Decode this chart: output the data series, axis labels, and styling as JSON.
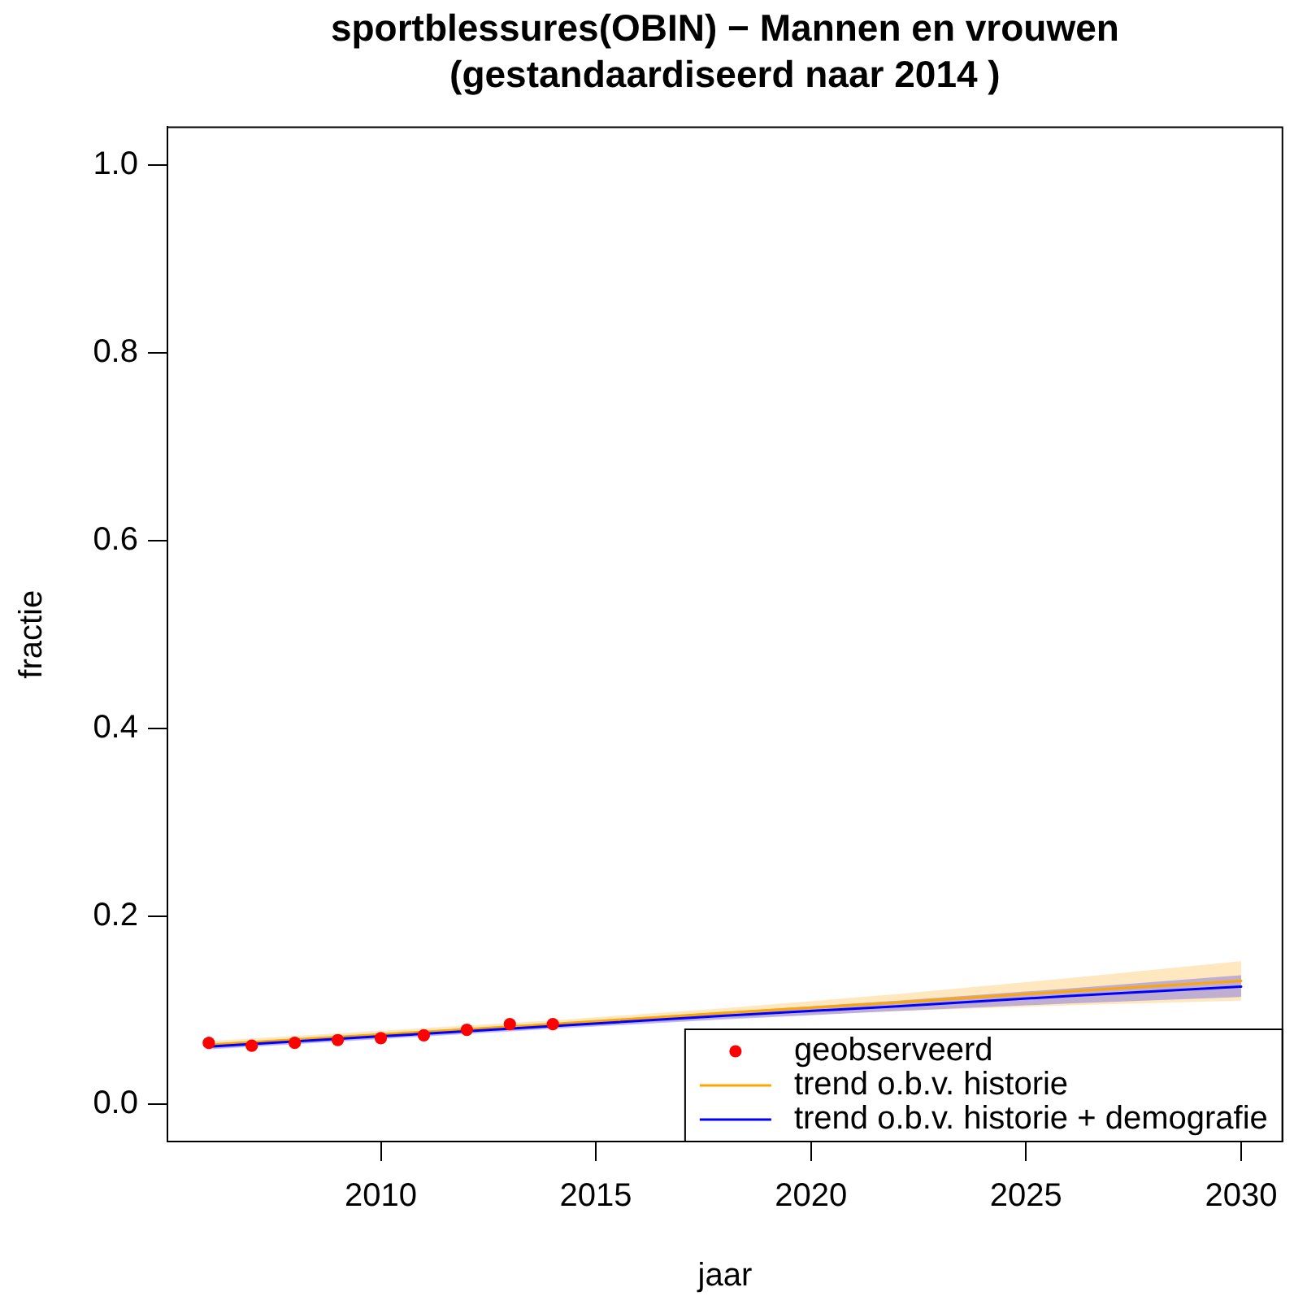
{
  "chart_data": {
    "type": "line",
    "title": "sportblessures(OBIN) − Mannen en vrouwen",
    "subtitle": "(gestandaardiseerd naar 2014 )",
    "xlabel": "jaar",
    "ylabel": "fractie",
    "series": [
      {
        "name": "geobserveerd",
        "type": "scatter",
        "marker": "circle",
        "color": "#ff0000",
        "x": [
          2006,
          2007,
          2008,
          2009,
          2010,
          2011,
          2012,
          2013,
          2014
        ],
        "values": [
          0.065,
          0.062,
          0.065,
          0.068,
          0.07,
          0.073,
          0.079,
          0.085,
          0.085
        ]
      },
      {
        "name": "trend o.b.v. historie",
        "color": "#ffa500",
        "x": [
          2006,
          2010,
          2014,
          2018,
          2022,
          2026,
          2030
        ],
        "values": [
          0.063,
          0.074,
          0.085,
          0.097,
          0.108,
          0.12,
          0.131
        ],
        "lower": [
          0.059,
          0.07,
          0.081,
          0.091,
          0.099,
          0.105,
          0.11
        ],
        "upper": [
          0.067,
          0.078,
          0.089,
          0.102,
          0.117,
          0.134,
          0.152
        ]
      },
      {
        "name": "trend o.b.v. historie + demografie",
        "color": "#0000ff",
        "x": [
          2006,
          2010,
          2014,
          2018,
          2022,
          2026,
          2030
        ],
        "values": [
          0.061,
          0.072,
          0.083,
          0.094,
          0.104,
          0.115,
          0.125
        ],
        "lower": [
          0.058,
          0.069,
          0.08,
          0.09,
          0.099,
          0.107,
          0.114
        ],
        "upper": [
          0.064,
          0.075,
          0.086,
          0.098,
          0.11,
          0.123,
          0.137
        ]
      }
    ],
    "xlim": [
      2005.04,
      2030.96
    ],
    "xticks": [
      2010,
      2015,
      2020,
      2025,
      2030
    ],
    "ylim": [
      -0.04,
      1.04
    ],
    "yticks": [
      {
        "value": 0,
        "label": "0.0"
      },
      0.2,
      0.4,
      0.6,
      0.8,
      {
        "value": 1,
        "label": "1.0"
      }
    ],
    "legend": "bottom right"
  }
}
